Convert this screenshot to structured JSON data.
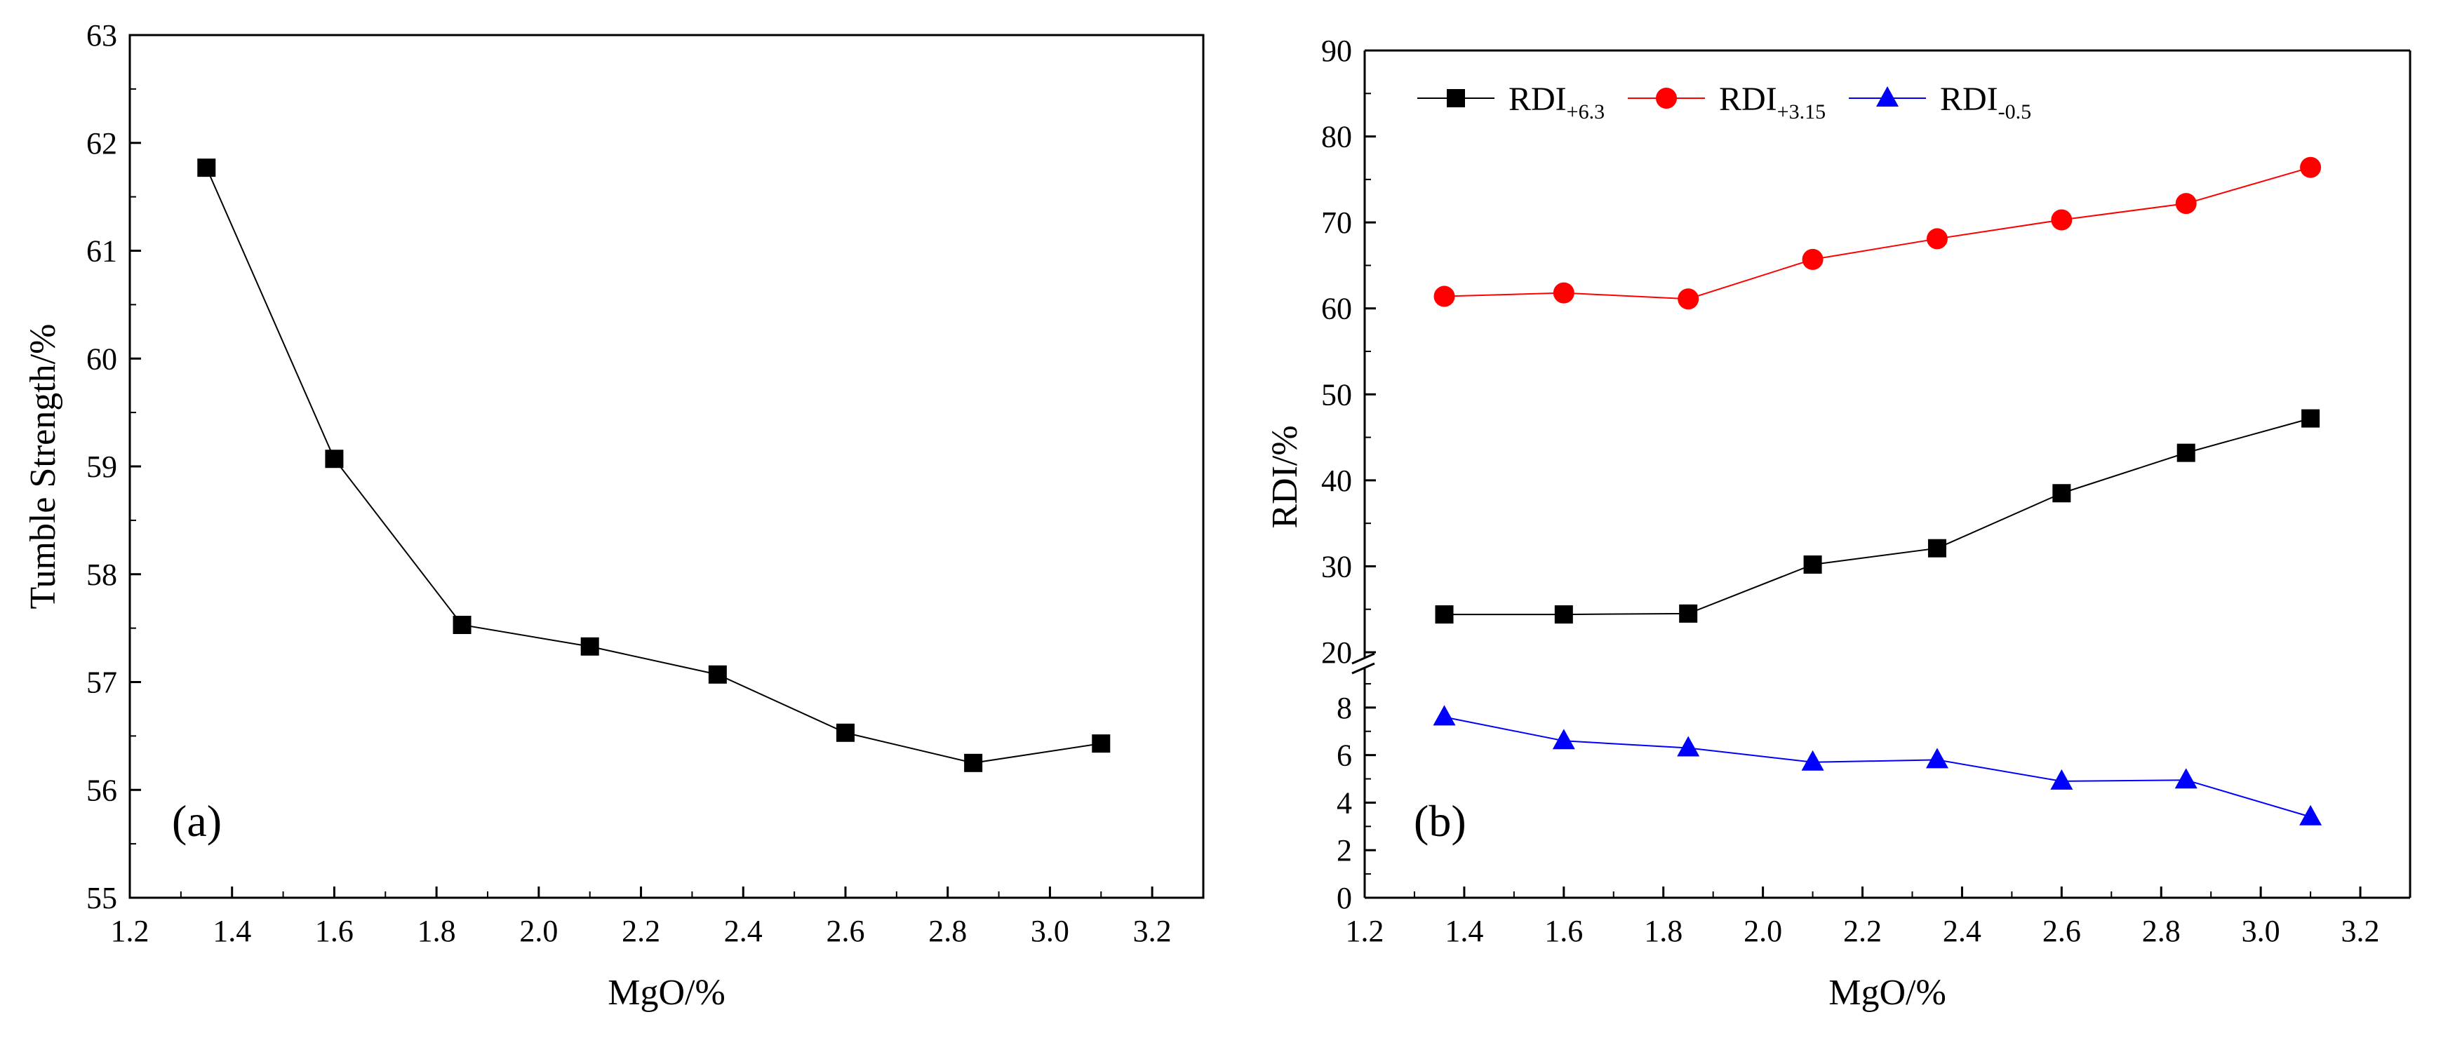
{
  "chart_data": [
    {
      "type": "line",
      "panel_label": "(a)",
      "xlabel": "MgO/%",
      "ylabel": "Tumble Strength/%",
      "xlim": [
        1.2,
        3.3
      ],
      "ylim": [
        55,
        63
      ],
      "xticks": [
        "1.2",
        "1.4",
        "1.6",
        "1.8",
        "2.0",
        "2.2",
        "2.4",
        "2.6",
        "2.8",
        "3.0",
        "3.2"
      ],
      "yticks": [
        "55",
        "56",
        "57",
        "58",
        "59",
        "60",
        "61",
        "62",
        "63"
      ],
      "series": [
        {
          "name": "Tumble Strength",
          "color": "#000000",
          "marker": "square",
          "x": [
            1.35,
            1.6,
            1.85,
            2.1,
            2.35,
            2.6,
            2.85,
            3.1
          ],
          "y": [
            61.77,
            59.07,
            57.53,
            57.33,
            57.07,
            56.53,
            56.25,
            56.43
          ]
        }
      ]
    },
    {
      "type": "line",
      "panel_label": "(b)",
      "xlabel": "MgO/%",
      "ylabel": "RDI/%",
      "xlim": [
        1.2,
        3.3
      ],
      "axis_break": true,
      "ylim_upper": [
        20,
        90
      ],
      "ylim_lower": [
        0,
        9.5
      ],
      "xticks": [
        "1.2",
        "1.4",
        "1.6",
        "1.8",
        "2.0",
        "2.2",
        "2.4",
        "2.6",
        "2.8",
        "3.0",
        "3.2"
      ],
      "yticks_upper": [
        "20",
        "30",
        "40",
        "50",
        "60",
        "70",
        "80",
        "90"
      ],
      "yticks_lower": [
        "0",
        "2",
        "4",
        "6",
        "8"
      ],
      "legend_position": "top-left",
      "series": [
        {
          "name_main": "RDI",
          "name_sub": "+6.3",
          "color": "#000000",
          "marker": "square",
          "axis": "upper",
          "x": [
            1.36,
            1.6,
            1.85,
            2.1,
            2.35,
            2.6,
            2.85,
            3.1
          ],
          "y": [
            24.4,
            24.4,
            24.5,
            30.2,
            32.1,
            38.5,
            43.2,
            47.2
          ]
        },
        {
          "name_main": "RDI",
          "name_sub": "+3.15",
          "color": "#ff0000",
          "marker": "circle",
          "axis": "upper",
          "x": [
            1.36,
            1.6,
            1.85,
            2.1,
            2.35,
            2.6,
            2.85,
            3.1
          ],
          "y": [
            61.4,
            61.8,
            61.1,
            65.7,
            68.1,
            70.3,
            72.2,
            76.4
          ]
        },
        {
          "name_main": "RDI",
          "name_sub": "-0.5",
          "color": "#0000ff",
          "marker": "triangle",
          "axis": "lower",
          "x": [
            1.36,
            1.6,
            1.85,
            2.1,
            2.35,
            2.6,
            2.85,
            3.1
          ],
          "y": [
            7.6,
            6.6,
            6.3,
            5.7,
            5.8,
            4.9,
            4.95,
            3.4
          ]
        }
      ]
    }
  ]
}
